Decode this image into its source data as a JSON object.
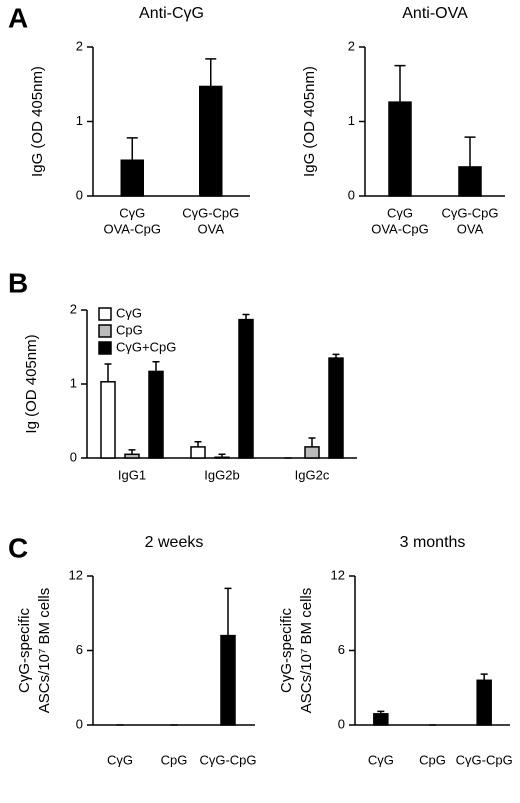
{
  "chart_data": [
    {
      "type": "bar",
      "panel": "A",
      "title": "Anti-CγG",
      "ylabel": "IgG (OD 405nm)",
      "categories": [
        [
          "CγG",
          "OVA-CpG"
        ],
        [
          "CγG-CpG",
          "OVA"
        ]
      ],
      "values": [
        0.48,
        1.47
      ],
      "errors": [
        0.3,
        0.37
      ],
      "color": "#000000",
      "ylim": [
        0,
        2
      ],
      "yticks": [
        0,
        1,
        2
      ]
    },
    {
      "type": "bar",
      "title": "Anti-OVA",
      "ylabel": "IgG (OD 405nm)",
      "categories": [
        [
          "CγG",
          "OVA-CpG"
        ],
        [
          "CγG-CpG",
          "OVA"
        ]
      ],
      "values": [
        1.26,
        0.39
      ],
      "errors": [
        0.49,
        0.4
      ],
      "color": "#000000",
      "ylim": [
        0,
        2
      ],
      "yticks": [
        0,
        1,
        2
      ]
    },
    {
      "type": "bar",
      "panel": "B",
      "ylabel": "Ig (OD 405nm)",
      "categories": [
        "IgG1",
        "IgG2b",
        "IgG2c"
      ],
      "series": [
        {
          "name": "CγG",
          "color": "#ffffff",
          "values": [
            1.03,
            0.15,
            0
          ],
          "errors": [
            0.24,
            0.07,
            0
          ]
        },
        {
          "name": "CpG",
          "color": "#bbbbbb",
          "values": [
            0.05,
            0.01,
            0.15
          ],
          "errors": [
            0.06,
            0.04,
            0.12
          ]
        },
        {
          "name": "CγG+CpG",
          "color": "#000000",
          "values": [
            1.17,
            1.87,
            1.35
          ],
          "errors": [
            0.13,
            0.07,
            0.05
          ]
        }
      ],
      "legend": "upper left",
      "ylim": [
        0,
        2
      ],
      "yticks": [
        0,
        1,
        2
      ]
    },
    {
      "type": "bar",
      "panel": "C",
      "title": "2 weeks",
      "ylabel": [
        "CγG-specific",
        "ASCs/10⁷ BM cells"
      ],
      "categories": [
        "CγG",
        "CpG",
        "CγG-CpG"
      ],
      "values": [
        0,
        0,
        7.2
      ],
      "errors": [
        0,
        0,
        3.8
      ],
      "color": "#000000",
      "ylim": [
        0,
        12
      ],
      "yticks": [
        0,
        6,
        12
      ]
    },
    {
      "type": "bar",
      "title": "3 months",
      "ylabel": [
        "CγG-specific",
        "ASCs/10⁷ BM cells"
      ],
      "categories": [
        "CγG",
        "CpG",
        "CγG-CpG"
      ],
      "values": [
        0.9,
        0,
        3.6
      ],
      "errors": [
        0.2,
        0,
        0.5
      ],
      "color": "#000000",
      "ylim": [
        0,
        12
      ],
      "yticks": [
        0,
        6,
        12
      ]
    }
  ]
}
